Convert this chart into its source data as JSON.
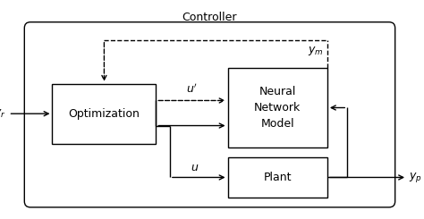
{
  "fig_width": 4.74,
  "fig_height": 2.45,
  "dpi": 100,
  "bg_color": "#ffffff",
  "box_color": "#ffffff",
  "box_edge_color": "#000000",
  "line_color": "#000000",
  "controller_label": "Controller",
  "optimization_label": "Optimization",
  "nnm_label": "Neural\nNetwork\nModel",
  "plant_label": "Plant",
  "yr_label": "$y_r$",
  "ym_label": "$y_m$",
  "yp_label": "$y_p$",
  "u_prime_label": "$u'$",
  "u_label": "$u$",
  "font_size": 9
}
